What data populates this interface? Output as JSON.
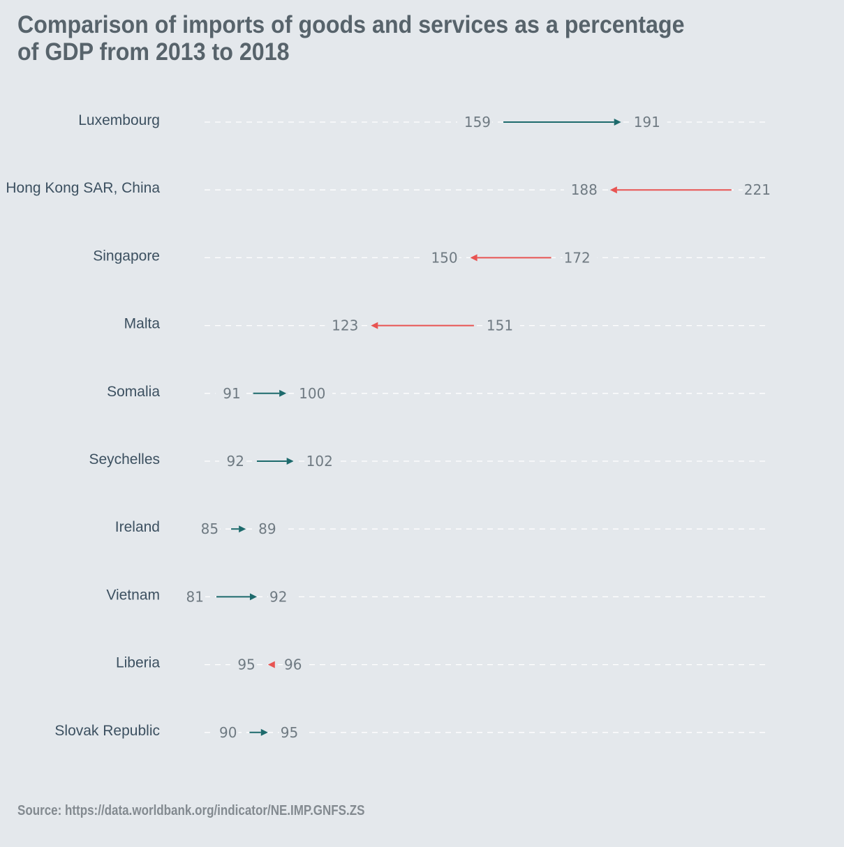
{
  "header": {
    "title": "Comparison of imports of goods and services as a percentage\nof GDP from 2013 to 2018"
  },
  "footer": {
    "source": "Source: https://data.worldbank.org/indicator/NE.IMP.GNFS.ZS"
  },
  "colors": {
    "increase": "#1d6a6c",
    "decrease": "#e85452",
    "background": "#e4e8ec"
  },
  "chart_data": {
    "type": "arrow-dumbbell",
    "title": "Comparison of imports of goods and services as a percentage of GDP from 2013 to 2018",
    "start_year": "2013",
    "end_year": "2018",
    "grid": "horizontal-dashed",
    "rows": [
      {
        "country": "Luxembourg",
        "start": 159,
        "end": 191
      },
      {
        "country": "Hong Kong SAR, China",
        "start": 221,
        "end": 188
      },
      {
        "country": "Singapore",
        "start": 172,
        "end": 150
      },
      {
        "country": "Malta",
        "start": 151,
        "end": 123
      },
      {
        "country": "Somalia",
        "start": 91,
        "end": 100
      },
      {
        "country": "Seychelles",
        "start": 92,
        "end": 102
      },
      {
        "country": "Ireland",
        "start": 85,
        "end": 89
      },
      {
        "country": "Vietnam",
        "start": 81,
        "end": 92
      },
      {
        "country": "Liberia",
        "start": 96,
        "end": 95
      },
      {
        "country": "Slovak Republic",
        "start": 90,
        "end": 95
      }
    ]
  }
}
